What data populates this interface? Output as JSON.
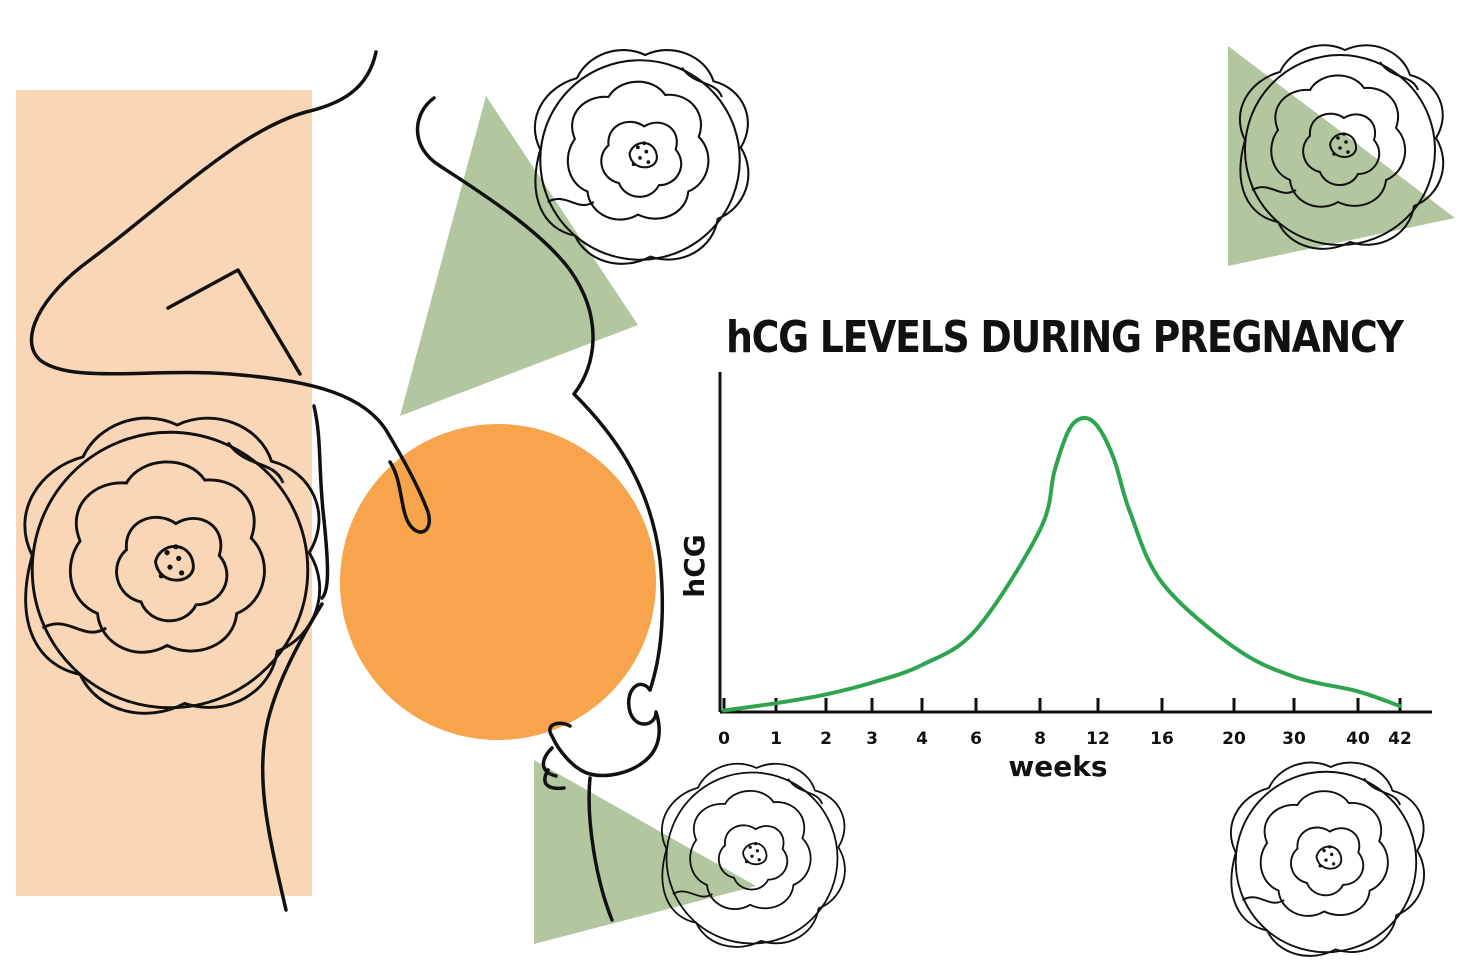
{
  "colors": {
    "peach_panel": "#f9d6b5",
    "orange_circle": "#f7a44c",
    "sage_triangle": "#b2c79f",
    "curve": "#2ea44f",
    "ink": "#111111"
  },
  "illustration": {
    "subject": "line-art pregnant woman holding belly",
    "decorations": [
      "peony-flower-icon",
      "peony-flower-icon",
      "peony-flower-icon",
      "peony-flower-icon",
      "peony-flower-icon"
    ]
  },
  "chart_data": {
    "type": "line",
    "title": "hCG LEVELS DURING PREGNANCY",
    "xlabel": "weeks",
    "ylabel": "hCG",
    "x_ticks": [
      "0",
      "1",
      "2",
      "3",
      "4",
      "6",
      "8",
      "12",
      "16",
      "20",
      "30",
      "40",
      "42"
    ],
    "x_axis_scale": "categorical (unevenly spaced week ticks)",
    "y_ticks": [],
    "grid": false,
    "series": [
      {
        "color": "#2ea44f",
        "x": [
          0,
          1,
          2,
          3,
          4,
          6,
          8,
          9,
          10,
          11,
          12,
          13,
          14,
          16,
          20,
          30,
          40,
          42
        ],
        "y": [
          0.005,
          0.03,
          0.06,
          0.1,
          0.16,
          0.28,
          0.62,
          0.82,
          0.96,
          1.0,
          0.97,
          0.86,
          0.68,
          0.44,
          0.22,
          0.12,
          0.07,
          0.02
        ]
      }
    ]
  }
}
